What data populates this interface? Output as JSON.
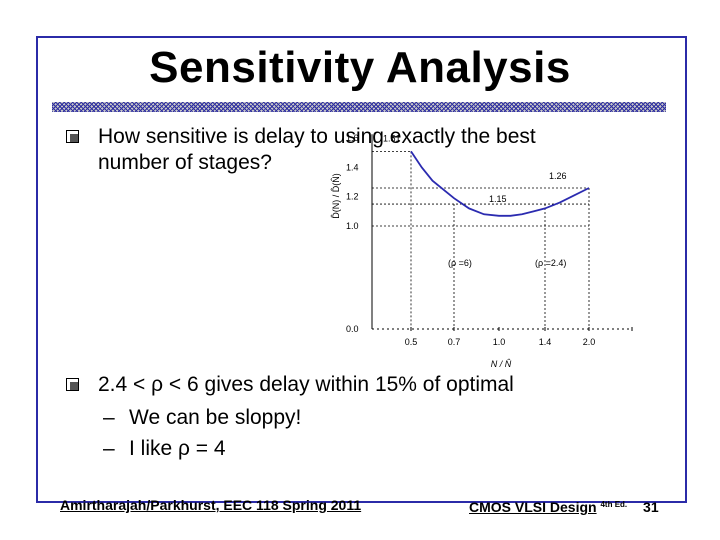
{
  "slide": {
    "title": "Sensitivity Analysis",
    "bullets": [
      {
        "line1": "How sensitive is delay to using exactly the best",
        "line2": "number of stages?"
      },
      {
        "line1": "2.4 < ρ < 6 gives delay within 15% of optimal"
      }
    ],
    "sub_bullets": [
      "We can be sloppy!",
      "I like ρ = 4"
    ],
    "dash": "–",
    "footer": {
      "left": "Amirtharajah/Parkhurst, EEC 118 Spring 2011",
      "right": "CMOS VLSI Design",
      "edition": "4th Ed.",
      "page": "31"
    },
    "colors": {
      "frame": "#2b2ba8",
      "curve": "#2b2bb0",
      "rule": "#2d2da0"
    }
  },
  "chart_data": {
    "type": "line",
    "ylabel": "D̂(N) / D̂(N̂)",
    "xlabel": "N / N̂",
    "x_ticks": [
      "0.5",
      "0.7",
      "1.0",
      "1.4",
      "2.0"
    ],
    "y_ticks": [
      "0.0",
      "1.0",
      "1.2",
      "1.4",
      "1.6"
    ],
    "series": [
      {
        "x": [
          0.5,
          0.55,
          0.6,
          0.7,
          0.8,
          0.9,
          1.0,
          1.1,
          1.2,
          1.3,
          1.4,
          1.6,
          1.8,
          2.0
        ],
        "y": [
          1.51,
          1.4,
          1.31,
          1.19,
          1.12,
          1.08,
          1.07,
          1.07,
          1.08,
          1.1,
          1.12,
          1.16,
          1.21,
          1.26
        ]
      }
    ],
    "annotations": [
      {
        "text": "1.51",
        "x": 0.5,
        "y": 1.51
      },
      {
        "text": "1.26",
        "x": 2.0,
        "y": 1.26
      },
      {
        "text": "1.15",
        "x": 1.0,
        "y": 1.15
      },
      {
        "text": "(ρ =6)",
        "x": 0.7,
        "y": 0.85
      },
      {
        "text": "(ρ =2.4)",
        "x": 1.4,
        "y": 0.85
      }
    ]
  }
}
